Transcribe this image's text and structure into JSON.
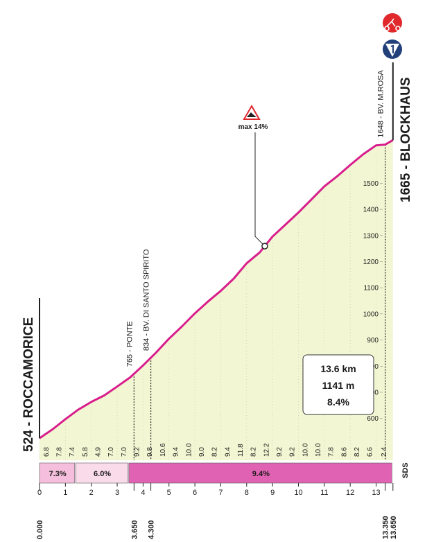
{
  "chart_data": {
    "type": "area",
    "x": [
      0,
      0.5,
      1,
      1.5,
      2,
      2.5,
      3,
      3.5,
      4,
      4.5,
      5,
      5.5,
      6,
      6.5,
      7,
      7.5,
      8,
      8.5,
      9,
      9.5,
      10,
      10.5,
      11,
      11.5,
      12,
      12.5,
      13,
      13.35,
      13.65
    ],
    "values": [
      524,
      558,
      597,
      634,
      663,
      688,
      722,
      757,
      803,
      852,
      905,
      952,
      1002,
      1047,
      1088,
      1135,
      1194,
      1235,
      1296,
      1342,
      1388,
      1438,
      1488,
      1527,
      1570,
      1611,
      1645,
      1648,
      1665
    ],
    "color": "#d81e8c",
    "fill": "#f3f6d3",
    "xlim": [
      0,
      13.65
    ],
    "ylim": [
      440,
      1700
    ],
    "xticks": [
      0,
      1,
      2,
      3,
      4,
      5,
      6,
      7,
      8,
      9,
      10,
      11,
      12,
      13
    ],
    "yticks": [
      600,
      700,
      800,
      900,
      1000,
      1100,
      1200,
      1300,
      1400,
      1500
    ],
    "start": "524 - ROCCAMORICE",
    "finish": "1665 - BLOCKHAUS",
    "distance_labels": [
      {
        "value": 0,
        "label": "0.000"
      },
      {
        "value": 3.65,
        "label": "3.650"
      },
      {
        "value": 4.3,
        "label": "4.300"
      },
      {
        "value": 13.35,
        "label": "13.350"
      },
      {
        "value": 13.65,
        "label": "13.650"
      }
    ],
    "waypoints": [
      {
        "x": 3.65,
        "label": "765 - PONTE"
      },
      {
        "x": 4.3,
        "label": "834 - BV. DI SANTO SPIRITO"
      },
      {
        "x": 13.35,
        "label": "1648 - BV. M.ROSA"
      }
    ],
    "gradients": {
      "x": [
        0.25,
        0.75,
        1.25,
        1.75,
        2.25,
        2.75,
        3.25,
        3.75,
        4.25,
        4.75,
        5.25,
        5.75,
        6.25,
        6.75,
        7.25,
        7.75,
        8.25,
        8.75,
        9.25,
        9.75,
        10.25,
        10.75,
        11.25,
        11.75,
        12.25,
        12.75,
        13.3
      ],
      "labels": [
        "6.8",
        "7.8",
        "7.4",
        "5.8",
        "4.9",
        "7.0",
        "7.0",
        "9.2",
        "9.8",
        "10.6",
        "9.4",
        "10.0",
        "9.0",
        "8.2",
        "9.4",
        "11.8",
        "8.2",
        "12.2",
        "9.2",
        "9.2",
        "10.0",
        "10.0",
        "7.8",
        "8.6",
        "8.2",
        "6.6",
        "2.4"
      ]
    },
    "sectors": [
      {
        "start": 0,
        "end": 1.4,
        "label": "7.3%",
        "color": "#f5bedc"
      },
      {
        "start": 1.4,
        "end": 3.45,
        "label": "6.0%",
        "color": "#f9dbea"
      },
      {
        "start": 3.45,
        "end": 13.65,
        "label": "9.4%",
        "color": "#e062b2"
      }
    ],
    "max_gradient": {
      "x": 8.7,
      "label": "max 14%"
    },
    "summary": [
      "13.6 km",
      "1141 m",
      "8.4%"
    ],
    "sponsor": "SDS"
  }
}
